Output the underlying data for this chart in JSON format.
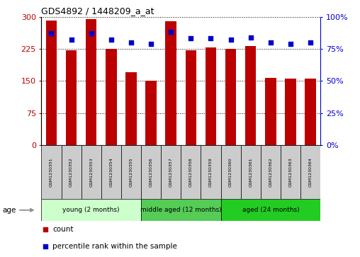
{
  "title": "GDS4892 / 1448209_a_at",
  "samples": [
    "GSM1230351",
    "GSM1230352",
    "GSM1230353",
    "GSM1230354",
    "GSM1230355",
    "GSM1230356",
    "GSM1230357",
    "GSM1230358",
    "GSM1230359",
    "GSM1230360",
    "GSM1230361",
    "GSM1230362",
    "GSM1230363",
    "GSM1230364"
  ],
  "counts": [
    291,
    222,
    295,
    225,
    170,
    151,
    290,
    222,
    228,
    225,
    231,
    158,
    155,
    156
  ],
  "percentiles": [
    87,
    82,
    87,
    82,
    80,
    79,
    88,
    83,
    83,
    82,
    84,
    80,
    79,
    80
  ],
  "ylim_left": [
    0,
    300
  ],
  "ylim_right": [
    0,
    100
  ],
  "yticks_left": [
    0,
    75,
    150,
    225,
    300
  ],
  "yticks_right": [
    0,
    25,
    50,
    75,
    100
  ],
  "bar_color": "#BB0000",
  "percentile_color": "#0000CC",
  "groups": [
    {
      "label": "young (2 months)",
      "start": 0,
      "end": 5,
      "color": "#CCFFCC"
    },
    {
      "label": "middle aged (12 months)",
      "start": 5,
      "end": 9,
      "color": "#55CC55"
    },
    {
      "label": "aged (24 months)",
      "start": 9,
      "end": 14,
      "color": "#22CC22"
    }
  ],
  "tick_bg_color": "#CCCCCC",
  "age_label": "age",
  "fig_width": 5.08,
  "fig_height": 3.63,
  "dpi": 100
}
